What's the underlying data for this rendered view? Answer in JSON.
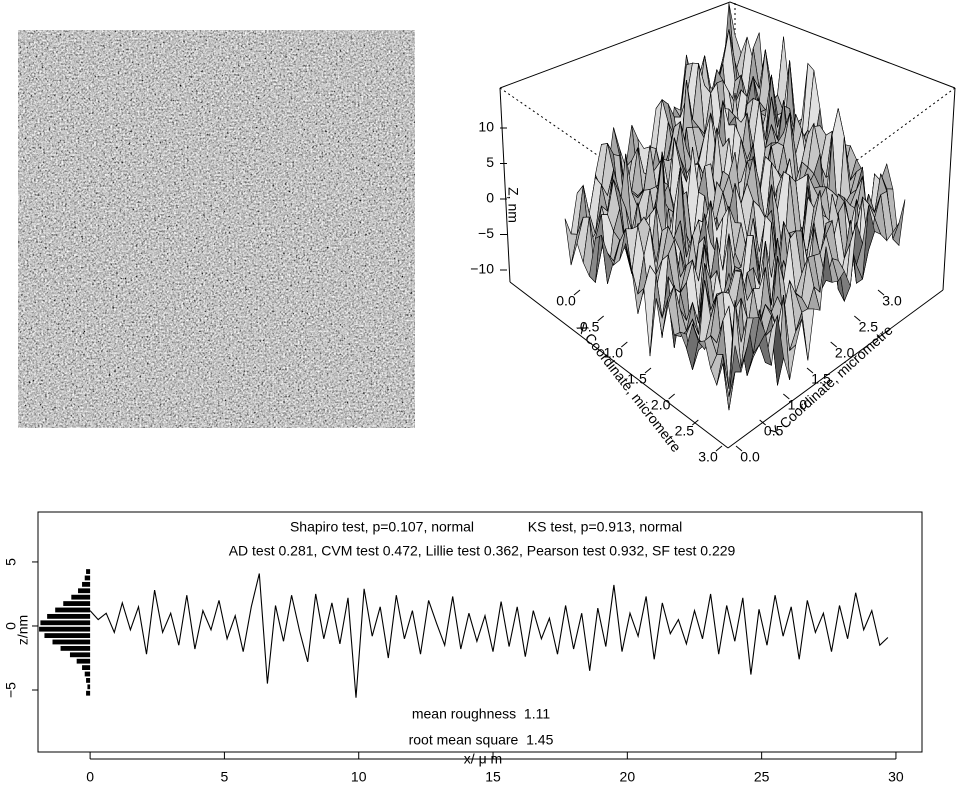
{
  "chart_data": [
    {
      "type": "surface3d",
      "zlabel": "Z, nm",
      "xlabel": "X Coordinate, micrometre",
      "ylabel": "Y Coordinate, micrometre",
      "zticks": [
        {
          "value": -10,
          "label": "−10"
        },
        {
          "value": -5,
          "label": "−5"
        },
        0,
        5,
        10
      ],
      "xlim": [
        0,
        3
      ],
      "ylim": [
        0,
        3
      ],
      "xticks": [
        {
          "value": 0,
          "label": "0.0"
        },
        0.5,
        {
          "value": 1,
          "label": "1.0"
        },
        1.5,
        {
          "value": 2,
          "label": "2.0"
        },
        2.5,
        {
          "value": 3,
          "label": "3.0"
        }
      ],
      "yticks": [
        {
          "value": 0,
          "label": "0.0"
        },
        0.5,
        {
          "value": 1,
          "label": "1.0"
        },
        1.5,
        {
          "value": 2,
          "label": "2.0"
        },
        2.5,
        {
          "value": 3,
          "label": "3.0"
        }
      ]
    },
    {
      "type": "line",
      "color": "#000000",
      "xlabel": "x/ μ m",
      "ylabel": "z/nm",
      "annotations": [
        "Shapiro test, p=0.107, normal",
        "KS test, p=0.913, normal",
        "AD test 0.281, CVM test 0.472, Lillie test 0.362, Pearson test 0.932, SF test 0.229",
        "mean roughness  1.11",
        "root mean square  1.45"
      ],
      "xlim": [
        -1.94,
        30.97
      ],
      "ylim": [
        -9.84,
        8.9
      ],
      "xticks": [
        0,
        5,
        10,
        15,
        20,
        25,
        30
      ],
      "yticks": [
        {
          "value": -5,
          "label": "−5"
        },
        0,
        5
      ],
      "x": [
        0,
        0.3,
        0.6,
        0.9,
        1.2,
        1.5,
        1.8,
        2.1,
        2.4,
        2.7,
        3,
        3.3,
        3.6,
        3.9,
        4.2,
        4.5,
        4.8,
        5.1,
        5.4,
        5.7,
        6,
        6.3,
        6.6,
        6.9,
        7.2,
        7.5,
        7.8,
        8.1,
        8.4,
        8.7,
        9,
        9.3,
        9.6,
        9.9,
        10.2,
        10.5,
        10.8,
        11.1,
        11.4,
        11.7,
        12,
        12.3,
        12.6,
        12.9,
        13.2,
        13.5,
        13.8,
        14.1,
        14.4,
        14.7,
        15,
        15.3,
        15.6,
        15.9,
        16.2,
        16.5,
        16.8,
        17.1,
        17.4,
        17.7,
        18,
        18.3,
        18.6,
        18.9,
        19.2,
        19.5,
        19.8,
        20.1,
        20.4,
        20.7,
        21,
        21.3,
        21.6,
        21.9,
        22.2,
        22.5,
        22.8,
        23.1,
        23.4,
        23.7,
        24,
        24.3,
        24.6,
        24.9,
        25.2,
        25.5,
        25.8,
        26.1,
        26.4,
        26.7,
        27,
        27.3,
        27.6,
        27.9,
        28.2,
        28.5,
        28.8,
        29.1,
        29.4,
        29.7
      ],
      "values": [
        1.2,
        0.5,
        1.0,
        -0.5,
        1.8,
        -0.3,
        1.5,
        -2.2,
        2.8,
        -0.5,
        1.0,
        -1.5,
        2.4,
        -1.8,
        1.2,
        -0.3,
        2.0,
        -1.0,
        0.8,
        -2.0,
        1.5,
        4.1,
        -4.5,
        1.6,
        -1.2,
        2.4,
        -0.4,
        -2.8,
        2.5,
        -1.0,
        1.8,
        -1.4,
        2.2,
        -5.6,
        2.9,
        -0.8,
        1.5,
        -2.5,
        2.4,
        -1.0,
        1.2,
        -2.2,
        2.0,
        0.2,
        -1.5,
        2.3,
        -1.8,
        1.0,
        -1.2,
        0.8,
        -2.0,
        1.9,
        -1.6,
        1.5,
        -2.4,
        1.2,
        -1.0,
        0.6,
        -2.2,
        1.6,
        -1.8,
        1.0,
        -3.5,
        1.4,
        -1.6,
        3.2,
        -2.0,
        1.0,
        -0.8,
        2.3,
        -2.6,
        1.8,
        -0.6,
        0.5,
        -1.4,
        1.2,
        -1.0,
        2.5,
        -2.2,
        1.6,
        -1.2,
        2.2,
        -3.8,
        1.3,
        -1.5,
        2.4,
        -0.8,
        1.5,
        -2.6,
        2.0,
        -0.5,
        1.0,
        -2.0,
        1.6,
        -1.0,
        2.6,
        -0.3,
        1.2,
        -1.5,
        -0.9
      ],
      "histogram": {
        "bins": [
          -5.5,
          -5,
          -4.5,
          -4,
          -3.5,
          -3,
          -2.5,
          -2,
          -1.5,
          -1,
          -0.5,
          0,
          0.5,
          1,
          1.5,
          2,
          2.5,
          3,
          3.5,
          4,
          4.5
        ],
        "values": [
          0.15,
          0.1,
          0.15,
          0.2,
          0.3,
          0.5,
          0.75,
          1.1,
          1.4,
          1.7,
          1.9,
          1.85,
          1.6,
          1.3,
          1.0,
          0.7,
          0.45,
          0.3,
          0.2,
          0.15
        ]
      }
    }
  ]
}
